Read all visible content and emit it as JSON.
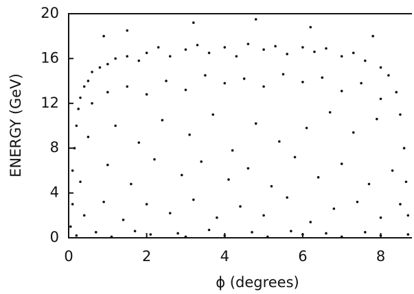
{
  "chart_data": {
    "type": "scatter",
    "x_label": "ϕ  (degrees)",
    "y_label": "ENERGY  (GeV)",
    "color": "#111111",
    "xlim": [
      0,
      8.8
    ],
    "ylim": [
      0,
      20
    ],
    "xticks": [
      0,
      2,
      4,
      6,
      8
    ],
    "yticks": [
      0,
      4,
      8,
      12,
      16,
      20
    ],
    "x": [
      0.05,
      0.1,
      0.1,
      0.15,
      0.2,
      0.25,
      0.3,
      0.4,
      0.5,
      0.6,
      0.8,
      1.0,
      1.2,
      1.5,
      1.8,
      2.0,
      2.3,
      2.6,
      3.0,
      3.3,
      3.6,
      4.0,
      4.3,
      4.6,
      5.0,
      5.3,
      5.6,
      6.0,
      6.3,
      6.6,
      7.0,
      7.3,
      7.6,
      8.0,
      8.2,
      8.4,
      8.5,
      8.6,
      8.65,
      8.7,
      0.6,
      1.0,
      1.5,
      2.0,
      2.5,
      3.0,
      3.5,
      4.0,
      4.5,
      5.0,
      5.5,
      6.0,
      6.5,
      7.0,
      7.5,
      8.0,
      0.5,
      1.2,
      1.8,
      2.4,
      3.1,
      3.7,
      4.2,
      4.8,
      5.4,
      6.1,
      6.7,
      7.3,
      7.9,
      0.3,
      1.0,
      1.6,
      2.2,
      2.9,
      3.4,
      4.1,
      4.6,
      5.2,
      5.8,
      6.4,
      7.0,
      7.7,
      8.3,
      0.4,
      0.9,
      1.4,
      2.0,
      2.6,
      3.2,
      3.8,
      4.4,
      5.0,
      5.6,
      6.2,
      6.8,
      7.4,
      8.0,
      8.5,
      0.2,
      1.1,
      2.1,
      3.0,
      4.0,
      5.1,
      6.0,
      7.0,
      8.0,
      8.7,
      0.7,
      1.7,
      2.8,
      3.6,
      4.7,
      5.7,
      6.6,
      7.6,
      1.5,
      3.2,
      4.8,
      6.2,
      7.8,
      0.9
    ],
    "values": [
      1,
      3,
      6,
      8,
      10,
      11.5,
      12.5,
      13.5,
      14,
      14.8,
      15.2,
      15.5,
      16,
      16.2,
      15.8,
      16.5,
      17,
      16.2,
      16.8,
      17.2,
      16.5,
      17,
      16.2,
      17.3,
      16.8,
      17.1,
      16.4,
      17,
      16.6,
      16.9,
      16.2,
      16.5,
      15.8,
      15.2,
      14.5,
      13,
      11,
      8,
      5,
      2,
      12,
      13,
      13.5,
      12.8,
      14,
      13.2,
      14.5,
      13.8,
      14.2,
      13.5,
      14.6,
      13.9,
      14.3,
      13.1,
      13.8,
      12.4,
      9,
      10,
      8.5,
      10.5,
      9.2,
      11,
      7.8,
      10.2,
      8.6,
      9.8,
      11.2,
      9.4,
      10.6,
      5,
      6.5,
      4.8,
      7,
      5.6,
      6.8,
      5.2,
      6.2,
      4.6,
      7.2,
      5.4,
      6.6,
      4.8,
      6,
      2,
      3.2,
      1.6,
      3,
      2.2,
      3.4,
      1.8,
      2.8,
      2,
      3.6,
      1.4,
      2.6,
      3.2,
      1.8,
      3,
      0.2,
      0.1,
      0.3,
      0.1,
      0.2,
      0.1,
      0.3,
      0.1,
      0.2,
      0.3,
      0.5,
      0.6,
      0.4,
      0.7,
      0.5,
      0.6,
      0.4,
      0.5,
      18.5,
      19.2,
      19.5,
      18.8,
      18,
      18
    ]
  }
}
